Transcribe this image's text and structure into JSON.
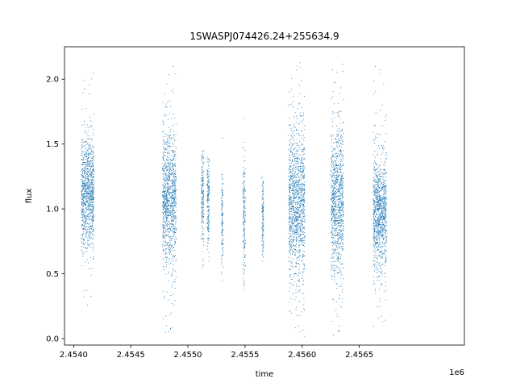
{
  "chart_data": {
    "type": "scatter",
    "title": "1SWASPJ074426.24+255634.9",
    "xlabel": "time",
    "ylabel": "flux",
    "x_offset_label": "1e6",
    "xlim": [
      2453920,
      2457420
    ],
    "ylim": [
      -0.05,
      2.25
    ],
    "x_ticks": [
      2454000,
      2454500,
      2455000,
      2455500,
      2456000,
      2456500
    ],
    "x_tick_labels": [
      "2.4540",
      "2.4545",
      "2.4550",
      "2.4555",
      "2.4560",
      "2.4565"
    ],
    "y_ticks": [
      0.0,
      0.5,
      1.0,
      1.5,
      2.0
    ],
    "y_tick_labels": [
      "0.0",
      "0.5",
      "1.0",
      "1.5",
      "2.0"
    ],
    "grid": false,
    "marker_color": "#1f77b4",
    "clusters": [
      {
        "x_start": 2454065,
        "x_end": 2454175,
        "center": 1.12,
        "spread": 0.22,
        "min": 0.26,
        "max": 2.05
      },
      {
        "x_start": 2454775,
        "x_end": 2454895,
        "center": 1.08,
        "spread": 0.26,
        "min": 0.05,
        "max": 2.1
      },
      {
        "x_start": 2455115,
        "x_end": 2455135,
        "center": 1.1,
        "spread": 0.18,
        "min": 0.55,
        "max": 1.45
      },
      {
        "x_start": 2455165,
        "x_end": 2455185,
        "center": 1.05,
        "spread": 0.18,
        "min": 0.6,
        "max": 1.4
      },
      {
        "x_start": 2455290,
        "x_end": 2455305,
        "center": 0.95,
        "spread": 0.18,
        "min": 0.45,
        "max": 1.55
      },
      {
        "x_start": 2455480,
        "x_end": 2455500,
        "center": 0.95,
        "spread": 0.22,
        "min": 0.38,
        "max": 1.7
      },
      {
        "x_start": 2455645,
        "x_end": 2455660,
        "center": 0.95,
        "spread": 0.15,
        "min": 0.6,
        "max": 1.25
      },
      {
        "x_start": 2455880,
        "x_end": 2456020,
        "center": 1.05,
        "spread": 0.3,
        "min": 0.02,
        "max": 2.13
      },
      {
        "x_start": 2456250,
        "x_end": 2456360,
        "center": 1.05,
        "spread": 0.28,
        "min": 0.03,
        "max": 2.12
      },
      {
        "x_start": 2456620,
        "x_end": 2456735,
        "center": 0.98,
        "spread": 0.22,
        "min": 0.1,
        "max": 2.1
      }
    ]
  }
}
